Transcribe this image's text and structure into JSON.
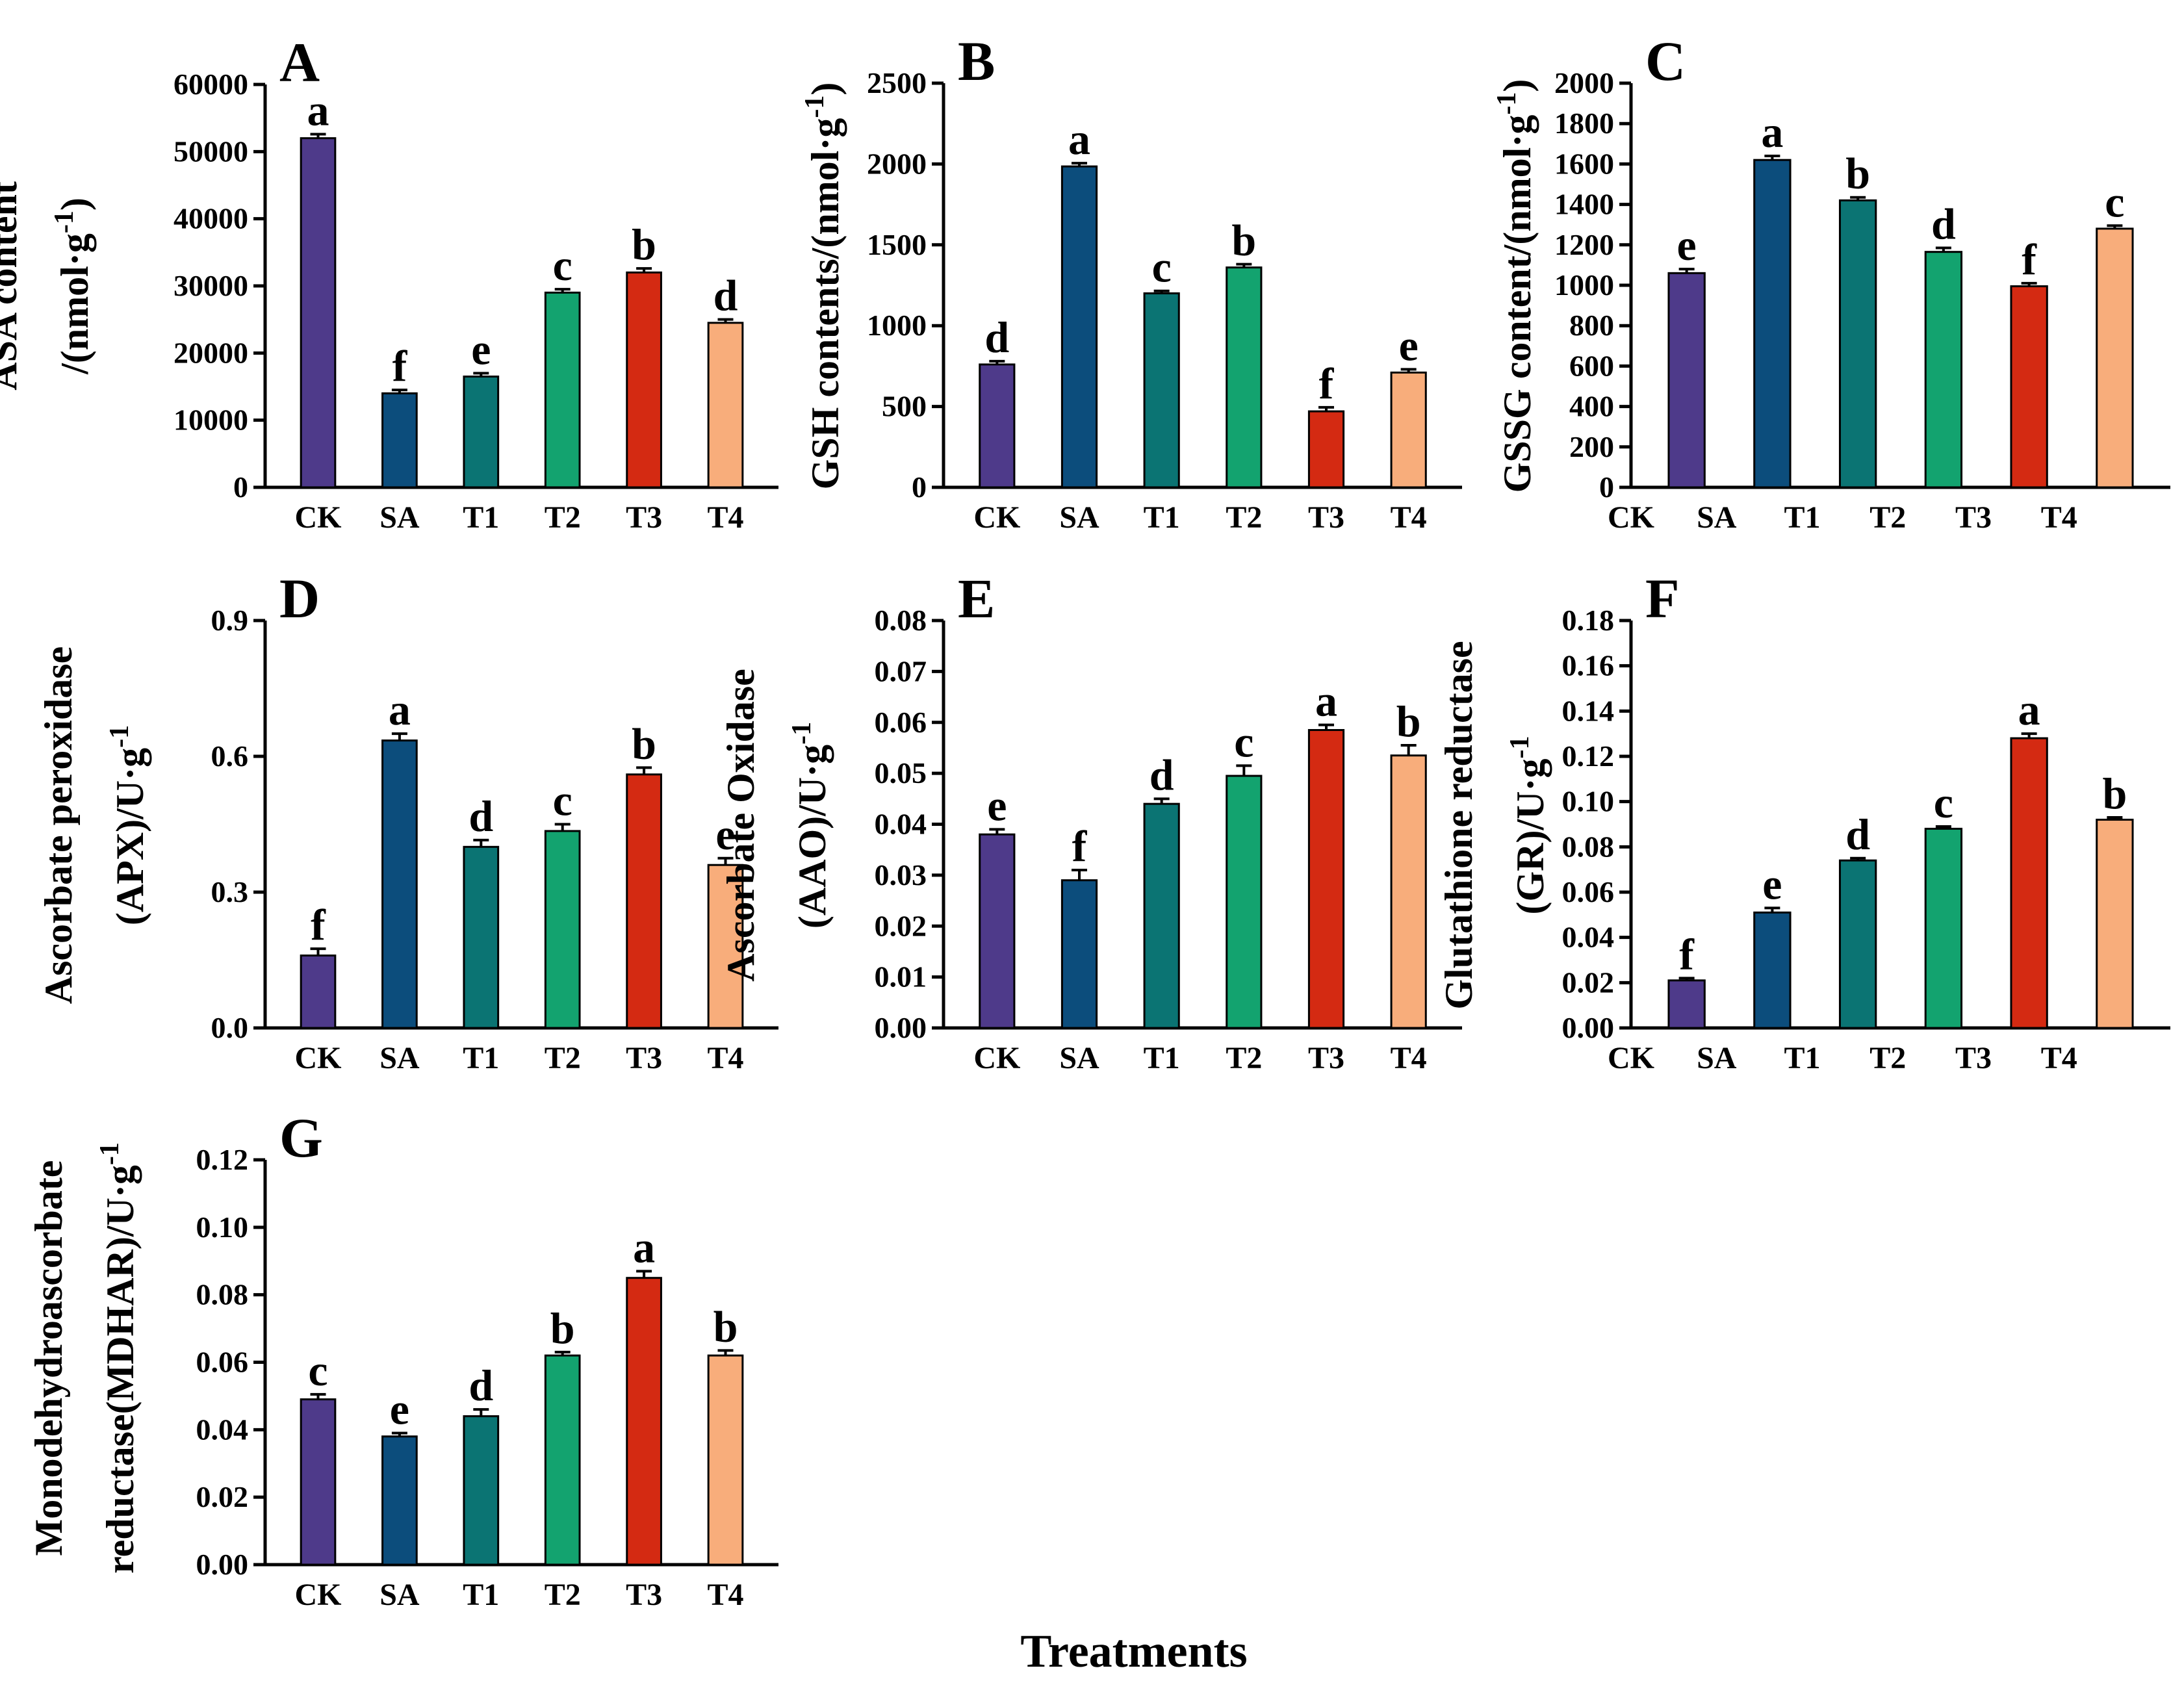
{
  "figure": {
    "xlabel": "Treatments"
  },
  "colors": {
    "CK": "#4e3a8a",
    "SA": "#0c4d7c",
    "T1": "#0b7473",
    "T2": "#13a36f",
    "T3": "#d42a12",
    "T4": "#f8ad7b",
    "axis": "#000000"
  },
  "chart_data": [
    {
      "id": "A",
      "panel_letter": "A",
      "type": "bar",
      "ylabel_lines": [
        "ASA content",
        "/(nmol·g⁻¹)"
      ],
      "categories": [
        "CK",
        "SA",
        "T1",
        "T2",
        "T3",
        "T4"
      ],
      "values": [
        52000,
        14000,
        16500,
        29000,
        32000,
        24500
      ],
      "errors": [
        600,
        500,
        500,
        500,
        600,
        500
      ],
      "sig_letters": [
        "a",
        "f",
        "e",
        "c",
        "b",
        "d"
      ],
      "ylim": [
        0,
        60000
      ],
      "yticks": [
        "0",
        "10000",
        "20000",
        "30000",
        "40000",
        "50000",
        "60000"
      ],
      "label_shift": 0
    },
    {
      "id": "B",
      "panel_letter": "B",
      "type": "bar",
      "ylabel_lines": [
        "GSH contents/(nmol·g⁻¹)"
      ],
      "categories": [
        "CK",
        "SA",
        "T1",
        "T2",
        "T3",
        "T4"
      ],
      "values": [
        760,
        1985,
        1200,
        1360,
        470,
        710
      ],
      "errors": [
        20,
        20,
        15,
        20,
        25,
        20
      ],
      "sig_letters": [
        "d",
        "a",
        "c",
        "b",
        "f",
        "e"
      ],
      "ylim": [
        0,
        2500
      ],
      "yticks": [
        "0",
        "500",
        "1000",
        "1500",
        "2000",
        "2500"
      ],
      "label_shift": 0
    },
    {
      "id": "C",
      "panel_letter": "C",
      "type": "bar",
      "ylabel_lines": [
        "GSSG content/(nmol·g⁻¹)"
      ],
      "categories": [
        "CK",
        "SA",
        "T1",
        "T2",
        "T3",
        "T4"
      ],
      "values": [
        1060,
        1620,
        1420,
        1165,
        995,
        1280
      ],
      "errors": [
        20,
        20,
        15,
        20,
        15,
        15
      ],
      "sig_letters": [
        "e",
        "a",
        "b",
        "d",
        "f",
        "c"
      ],
      "ylim": [
        0,
        2000
      ],
      "yticks": [
        "0",
        "200",
        "400",
        "600",
        "800",
        "1000",
        "1200",
        "1400",
        "1600",
        "1800",
        "2000"
      ],
      "label_shift": 1
    },
    {
      "id": "D",
      "panel_letter": "D",
      "type": "bar",
      "ylabel_lines": [
        "Ascorbate peroxidase",
        "(APX)/U·g⁻¹"
      ],
      "categories": [
        "CK",
        "SA",
        "T1",
        "T2",
        "T3",
        "T4"
      ],
      "values": [
        0.16,
        0.635,
        0.4,
        0.435,
        0.56,
        0.36
      ],
      "errors": [
        0.015,
        0.015,
        0.015,
        0.015,
        0.015,
        0.015
      ],
      "sig_letters": [
        "f",
        "a",
        "d",
        "c",
        "b",
        "e"
      ],
      "ylim": [
        0,
        0.9
      ],
      "yticks": [
        "0.0",
        "0.3",
        "0.6",
        "0.9"
      ],
      "label_shift": 0
    },
    {
      "id": "E",
      "panel_letter": "E",
      "type": "bar",
      "ylabel_lines": [
        "Ascorbate Oxidase",
        "(AAO)/U·g⁻¹"
      ],
      "categories": [
        "CK",
        "SA",
        "T1",
        "T2",
        "T3",
        "T4"
      ],
      "values": [
        0.038,
        0.029,
        0.044,
        0.0495,
        0.0585,
        0.0535
      ],
      "errors": [
        0.001,
        0.002,
        0.001,
        0.002,
        0.001,
        0.002
      ],
      "sig_letters": [
        "e",
        "f",
        "d",
        "c",
        "a",
        "b"
      ],
      "ylim": [
        0,
        0.08
      ],
      "yticks": [
        "0.00",
        "0.01",
        "0.02",
        "0.03",
        "0.04",
        "0.05",
        "0.06",
        "0.07",
        "0.08"
      ],
      "label_shift": 0
    },
    {
      "id": "F",
      "panel_letter": "F",
      "type": "bar",
      "ylabel_lines": [
        "Glutathione reductase",
        "(GR)/U·g⁻¹"
      ],
      "categories": [
        "CK",
        "SA",
        "T1",
        "T2",
        "T3",
        "T4"
      ],
      "values": [
        0.021,
        0.051,
        0.074,
        0.088,
        0.128,
        0.092
      ],
      "errors": [
        0.001,
        0.002,
        0.001,
        0.001,
        0.002,
        0.001
      ],
      "sig_letters": [
        "f",
        "e",
        "d",
        "c",
        "a",
        "b"
      ],
      "ylim": [
        0,
        0.18
      ],
      "yticks": [
        "0.00",
        "0.02",
        "0.04",
        "0.06",
        "0.08",
        "0.10",
        "0.12",
        "0.14",
        "0.16",
        "0.18"
      ],
      "label_shift": 1
    },
    {
      "id": "G",
      "panel_letter": "G",
      "type": "bar",
      "ylabel_lines": [
        "Monodehydroascorbate",
        "reductase(MDHAR)/U·g⁻¹"
      ],
      "categories": [
        "CK",
        "SA",
        "T1",
        "T2",
        "T3",
        "T4"
      ],
      "values": [
        0.049,
        0.038,
        0.044,
        0.062,
        0.085,
        0.062
      ],
      "errors": [
        0.0015,
        0.001,
        0.002,
        0.001,
        0.002,
        0.0015
      ],
      "sig_letters": [
        "c",
        "e",
        "d",
        "b",
        "a",
        "b"
      ],
      "ylim": [
        0,
        0.12
      ],
      "yticks": [
        "0.00",
        "0.02",
        "0.04",
        "0.06",
        "0.08",
        "0.10",
        "0.12"
      ],
      "label_shift": 0
    }
  ]
}
